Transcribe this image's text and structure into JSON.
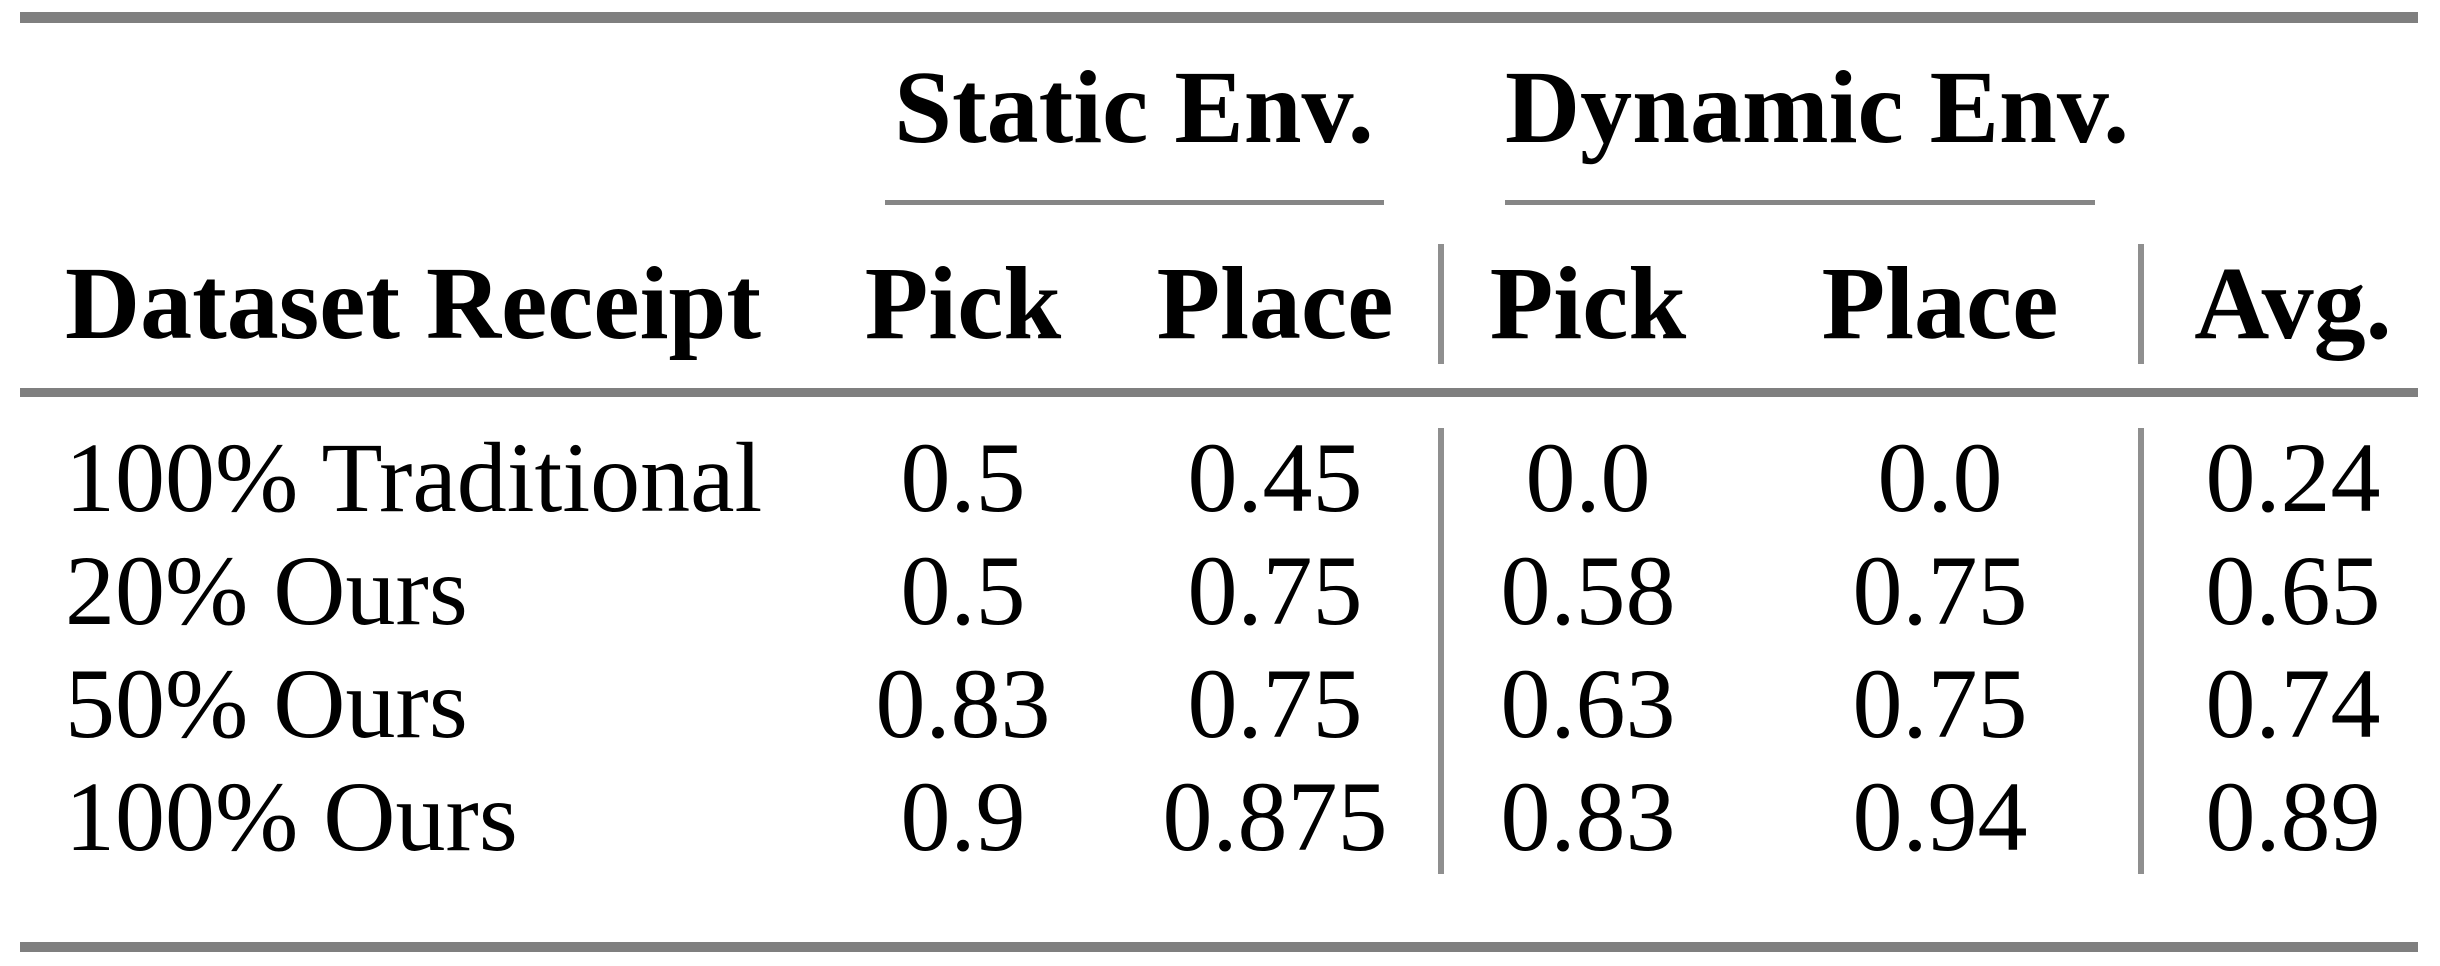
{
  "figure": {
    "background": "#ffffff",
    "text_color": "#000000",
    "rule_color": "#7f7f7f",
    "separator_color": "#8f8f8f"
  },
  "table": {
    "group_headers": {
      "static": "Static Env.",
      "dynamic": "Dynamic Env."
    },
    "columns": [
      "Dataset Receipt",
      "Pick",
      "Place",
      "Pick",
      "Place",
      "Avg."
    ],
    "rows": [
      {
        "label": "100% Traditional",
        "cells": [
          "0.5",
          "0.45",
          "0.0",
          "0.0",
          "0.24"
        ]
      },
      {
        "label": "20% Ours",
        "cells": [
          "0.5",
          "0.75",
          "0.58",
          "0.75",
          "0.65"
        ]
      },
      {
        "label": "50% Ours",
        "cells": [
          "0.83",
          "0.75",
          "0.63",
          "0.75",
          "0.74"
        ]
      },
      {
        "label": "100% Ours",
        "cells": [
          "0.9",
          "0.875",
          "0.83",
          "0.94",
          "0.89"
        ]
      }
    ]
  },
  "chart_data": {
    "type": "table",
    "title": "",
    "column_groups": [
      {
        "label": "Static Env.",
        "columns": [
          "Pick",
          "Place"
        ]
      },
      {
        "label": "Dynamic Env.",
        "columns": [
          "Pick",
          "Place"
        ]
      }
    ],
    "columns": [
      "Dataset Receipt",
      "Static Pick",
      "Static Place",
      "Dynamic Pick",
      "Dynamic Place",
      "Avg."
    ],
    "rows": [
      {
        "dataset_receipt": "100% Traditional",
        "static_pick": 0.5,
        "static_place": 0.45,
        "dynamic_pick": 0.0,
        "dynamic_place": 0.0,
        "avg": 0.24
      },
      {
        "dataset_receipt": "20% Ours",
        "static_pick": 0.5,
        "static_place": 0.75,
        "dynamic_pick": 0.58,
        "dynamic_place": 0.75,
        "avg": 0.65
      },
      {
        "dataset_receipt": "50% Ours",
        "static_pick": 0.83,
        "static_place": 0.75,
        "dynamic_pick": 0.63,
        "dynamic_place": 0.75,
        "avg": 0.74
      },
      {
        "dataset_receipt": "100% Ours",
        "static_pick": 0.9,
        "static_place": 0.875,
        "dynamic_pick": 0.83,
        "dynamic_place": 0.94,
        "avg": 0.89
      }
    ]
  }
}
